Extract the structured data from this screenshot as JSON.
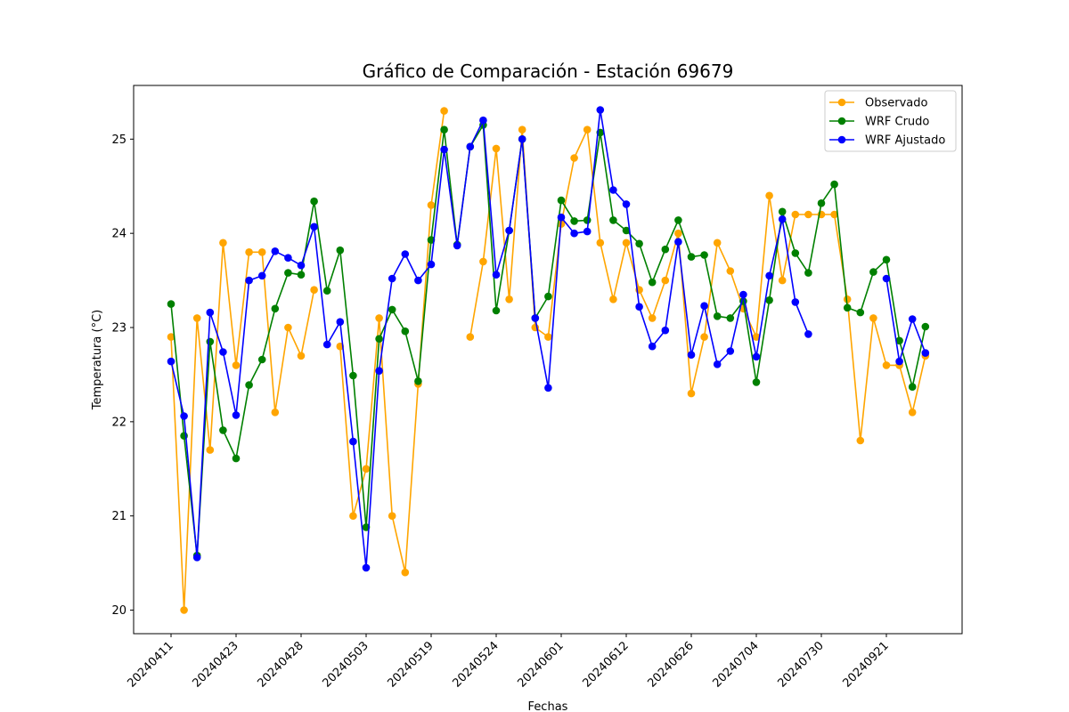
{
  "chart_data": {
    "type": "line",
    "title": "Gráfico de Comparación - Estación 69679",
    "xlabel": "Fechas",
    "ylabel": "Temperatura (°C)",
    "ylim": [
      19.75,
      25.57
    ],
    "yticks": [
      20,
      21,
      22,
      23,
      24,
      25
    ],
    "xticks": [
      {
        "index": 0,
        "label": "20240411"
      },
      {
        "index": 5,
        "label": "20240423"
      },
      {
        "index": 10,
        "label": "20240428"
      },
      {
        "index": 15,
        "label": "20240503"
      },
      {
        "index": 20,
        "label": "20240519"
      },
      {
        "index": 25,
        "label": "20240524"
      },
      {
        "index": 30,
        "label": "20240601"
      },
      {
        "index": 35,
        "label": "20240612"
      },
      {
        "index": 40,
        "label": "20240626"
      },
      {
        "index": 45,
        "label": "20240704"
      },
      {
        "index": 50,
        "label": "20240730"
      },
      {
        "index": 55,
        "label": "20240921"
      }
    ],
    "legend_position": "top-right",
    "grid": false,
    "series": [
      {
        "name": "Observado",
        "color": "#ffa500",
        "values": [
          22.9,
          20.0,
          23.1,
          21.7,
          23.9,
          22.6,
          23.8,
          23.8,
          22.1,
          23.0,
          22.7,
          23.4,
          null,
          22.8,
          21.0,
          21.5,
          23.1,
          21.0,
          20.4,
          22.4,
          24.3,
          25.3,
          null,
          22.9,
          23.7,
          24.9,
          23.3,
          25.1,
          23.0,
          22.9,
          24.1,
          24.8,
          25.1,
          23.9,
          23.3,
          23.9,
          23.4,
          23.1,
          23.5,
          24.0,
          22.3,
          22.9,
          23.9,
          23.6,
          23.2,
          22.9,
          24.4,
          23.5,
          24.2,
          24.2,
          24.2,
          24.2,
          23.3,
          21.8,
          23.1,
          22.6,
          22.6,
          22.1,
          22.7
        ]
      },
      {
        "name": "WRF Crudo",
        "color": "#008000",
        "values": [
          23.25,
          21.85,
          20.58,
          22.85,
          21.91,
          21.61,
          22.39,
          22.66,
          23.2,
          23.58,
          23.56,
          24.34,
          23.39,
          23.82,
          22.49,
          20.88,
          22.88,
          23.19,
          22.96,
          22.43,
          23.93,
          25.1,
          23.88,
          24.92,
          25.15,
          23.18,
          24.03,
          25.0,
          23.1,
          23.33,
          24.35,
          24.13,
          24.14,
          25.07,
          24.14,
          24.03,
          23.89,
          23.48,
          23.83,
          24.14,
          23.75,
          23.77,
          23.12,
          23.1,
          23.28,
          22.42,
          23.29,
          24.23,
          23.79,
          23.58,
          24.32,
          24.52,
          23.21,
          23.16,
          23.59,
          23.72,
          22.86,
          22.37,
          23.01
        ]
      },
      {
        "name": "WRF Ajustado",
        "color": "#0000ff",
        "values": [
          22.64,
          22.06,
          20.56,
          23.16,
          22.74,
          22.07,
          23.5,
          23.55,
          23.81,
          23.74,
          23.66,
          24.07,
          22.82,
          23.06,
          21.79,
          20.45,
          22.54,
          23.52,
          23.78,
          23.5,
          23.67,
          24.89,
          23.87,
          24.92,
          25.2,
          23.56,
          24.03,
          25.0,
          23.1,
          22.36,
          24.17,
          24.0,
          24.02,
          25.31,
          24.46,
          24.31,
          23.22,
          22.8,
          22.97,
          23.91,
          22.71,
          23.23,
          22.61,
          22.75,
          23.35,
          22.69,
          23.55,
          24.15,
          23.27,
          22.93,
          null,
          null,
          null,
          null,
          null,
          23.52,
          22.64,
          23.09,
          22.73
        ]
      }
    ]
  }
}
